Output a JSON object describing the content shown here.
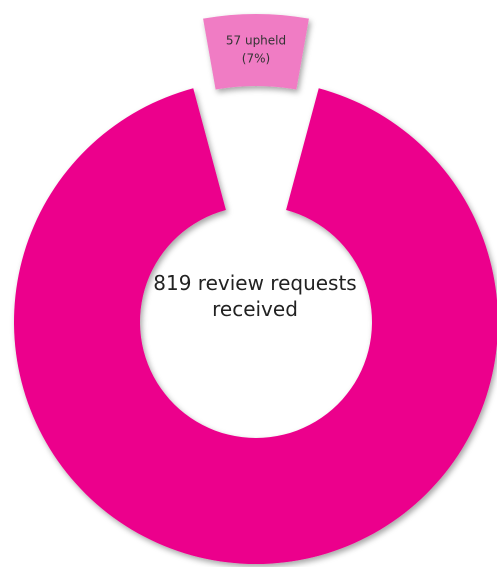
{
  "chart_data": {
    "type": "pie",
    "donut": true,
    "center_label": "819 review requests received",
    "categories": [
      null,
      null
    ],
    "values": [
      57,
      762
    ],
    "value_labels": [
      [
        "57 upheld",
        "(7%)"
      ],
      null
    ],
    "colors": [
      "#f07cc4",
      "#ec008c"
    ],
    "exploded": [
      true,
      false
    ]
  }
}
